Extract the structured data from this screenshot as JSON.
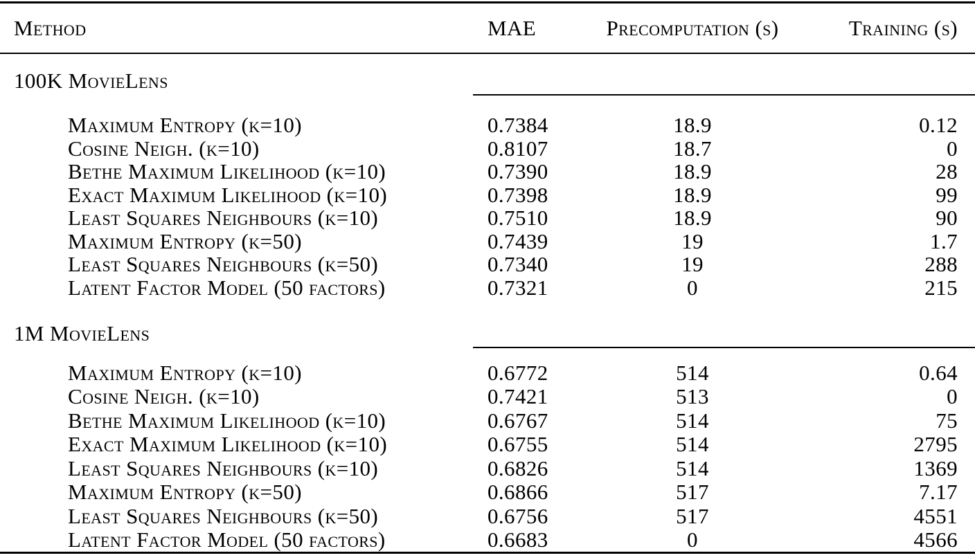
{
  "table": {
    "columns": [
      "Method",
      "MAE",
      "Precomputation (s)",
      "Training (s)"
    ],
    "sections": [
      {
        "title": "100K MovieLens",
        "rows": [
          {
            "method": "Maximum Entropy (k=10)",
            "mae": "0.7384",
            "precomputation": "18.9",
            "training": "0.12"
          },
          {
            "method": "Cosine Neigh. (k=10)",
            "mae": "0.8107",
            "precomputation": "18.7",
            "training": "0"
          },
          {
            "method": "Bethe Maximum Likelihood (k=10)",
            "mae": "0.7390",
            "precomputation": "18.9",
            "training": "28"
          },
          {
            "method": "Exact Maximum Likelihood (k=10)",
            "mae": "0.7398",
            "precomputation": "18.9",
            "training": "99"
          },
          {
            "method": "Least Squares Neighbours (k=10)",
            "mae": "0.7510",
            "precomputation": "18.9",
            "training": "90"
          },
          {
            "method": "Maximum Entropy (k=50)",
            "mae": "0.7439",
            "precomputation": "19",
            "training": "1.7"
          },
          {
            "method": "Least Squares Neighbours (k=50)",
            "mae": "0.7340",
            "precomputation": "19",
            "training": "288"
          },
          {
            "method": "Latent Factor Model (50 factors)",
            "mae": "0.7321",
            "precomputation": "0",
            "training": "215"
          }
        ]
      },
      {
        "title": "1M MovieLens",
        "rows": [
          {
            "method": "Maximum Entropy (k=10)",
            "mae": "0.6772",
            "precomputation": "514",
            "training": "0.64"
          },
          {
            "method": "Cosine Neigh. (k=10)",
            "mae": "0.7421",
            "precomputation": "513",
            "training": "0"
          },
          {
            "method": "Bethe Maximum Likelihood (k=10)",
            "mae": "0.6767",
            "precomputation": "514",
            "training": "75"
          },
          {
            "method": "Exact Maximum Likelihood (k=10)",
            "mae": "0.6755",
            "precomputation": "514",
            "training": "2795"
          },
          {
            "method": "Least Squares Neighbours (k=10)",
            "mae": "0.6826",
            "precomputation": "514",
            "training": "1369"
          },
          {
            "method": "Maximum Entropy (k=50)",
            "mae": "0.6866",
            "precomputation": "517",
            "training": "7.17"
          },
          {
            "method": "Least Squares Neighbours (k=50)",
            "mae": "0.6756",
            "precomputation": "517",
            "training": "4551"
          },
          {
            "method": "Latent Factor Model (50 factors)",
            "mae": "0.6683",
            "precomputation": "0",
            "training": "4566"
          }
        ]
      }
    ]
  }
}
